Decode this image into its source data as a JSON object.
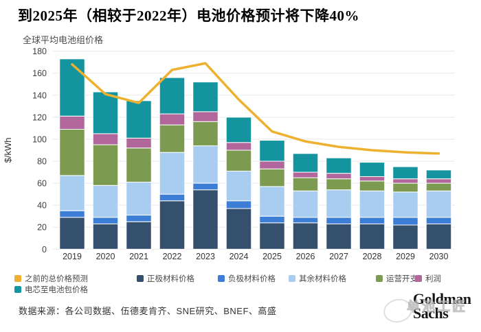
{
  "header": {
    "title": "到2025年（相较于2022年）电池价格预计将下降40%",
    "subtitle": "全球平均电池组价格"
  },
  "footer": {
    "source": "数据来源：各公司数据、伍德麦肯齐、SNE研究、BNEF、高盛",
    "brand_line1": "Goldman",
    "brand_line2": "Sachs",
    "watermark_text": "单池工匠"
  },
  "colors": {
    "grid": "#e8e8e8",
    "tick_text": "#3f3f3f",
    "axis_text": "#333333",
    "forecast_line": "#eeb02f"
  },
  "chart_data": {
    "type": "bar",
    "combo": "stacked-bar-with-line",
    "title": "到2025年（相较于2022年）电池价格预计将下降40%",
    "subtitle": "全球平均电池组价格",
    "xlabel": "",
    "ylabel": "$/kWh",
    "ylim": [
      0,
      180
    ],
    "ytick_step": 20,
    "grid": true,
    "legend_position": "bottom",
    "categories": [
      "2019",
      "2020",
      "2021",
      "2022",
      "2023",
      "2024",
      "2025",
      "2026",
      "2027",
      "2028",
      "2029",
      "2030"
    ],
    "series": [
      {
        "name": "正极材料价格",
        "type": "bar",
        "color": "#35506d",
        "values": [
          29,
          23,
          25,
          44,
          54,
          37,
          24,
          24,
          23,
          23,
          22,
          23
        ]
      },
      {
        "name": "负极材料价格",
        "type": "bar",
        "color": "#3c7dd6",
        "values": [
          6,
          6,
          6,
          6,
          6,
          7,
          6,
          5,
          6,
          6,
          7,
          6
        ]
      },
      {
        "name": "其余材料价格",
        "type": "bar",
        "color": "#a9cdf0",
        "values": [
          32,
          29,
          30,
          38,
          34,
          27,
          27,
          24,
          25,
          24,
          23,
          24
        ]
      },
      {
        "name": "运营开支",
        "type": "bar",
        "color": "#7c9b50",
        "values": [
          42,
          37,
          31,
          25,
          22,
          19,
          16,
          12,
          10,
          9,
          8,
          7
        ]
      },
      {
        "name": "利润",
        "type": "bar",
        "color": "#b1669c",
        "values": [
          12,
          10,
          9,
          10,
          9,
          7,
          7,
          5,
          5,
          4,
          4,
          4
        ]
      },
      {
        "name": "电芯至电池包价格",
        "type": "bar",
        "color": "#14949e",
        "values": [
          52,
          38,
          34,
          33,
          27,
          23,
          19,
          17,
          14,
          13,
          11,
          8
        ]
      },
      {
        "name": "之前的总价格预测",
        "type": "line",
        "color": "#eeb02f",
        "values": [
          168,
          141,
          133,
          163,
          169,
          136,
          107,
          98,
          93,
          90,
          88,
          87
        ]
      }
    ],
    "stack_totals": [
      172,
      143,
      135,
      156,
      152,
      120,
      99,
      87,
      83,
      79,
      75,
      72
    ]
  },
  "legend": {
    "items": [
      {
        "label": "之前的总价格预测",
        "color": "#eeb02f"
      },
      {
        "label": "正极材料价格",
        "color": "#35506d"
      },
      {
        "label": "负极材料价格",
        "color": "#3c7dd6"
      },
      {
        "label": "其余材料价格",
        "color": "#a9cdf0"
      },
      {
        "label": "运营开支",
        "color": "#7c9b50"
      },
      {
        "label": "利润",
        "color": "#b1669c"
      },
      {
        "label": "电芯至电池包价格",
        "color": "#14949e"
      }
    ]
  }
}
